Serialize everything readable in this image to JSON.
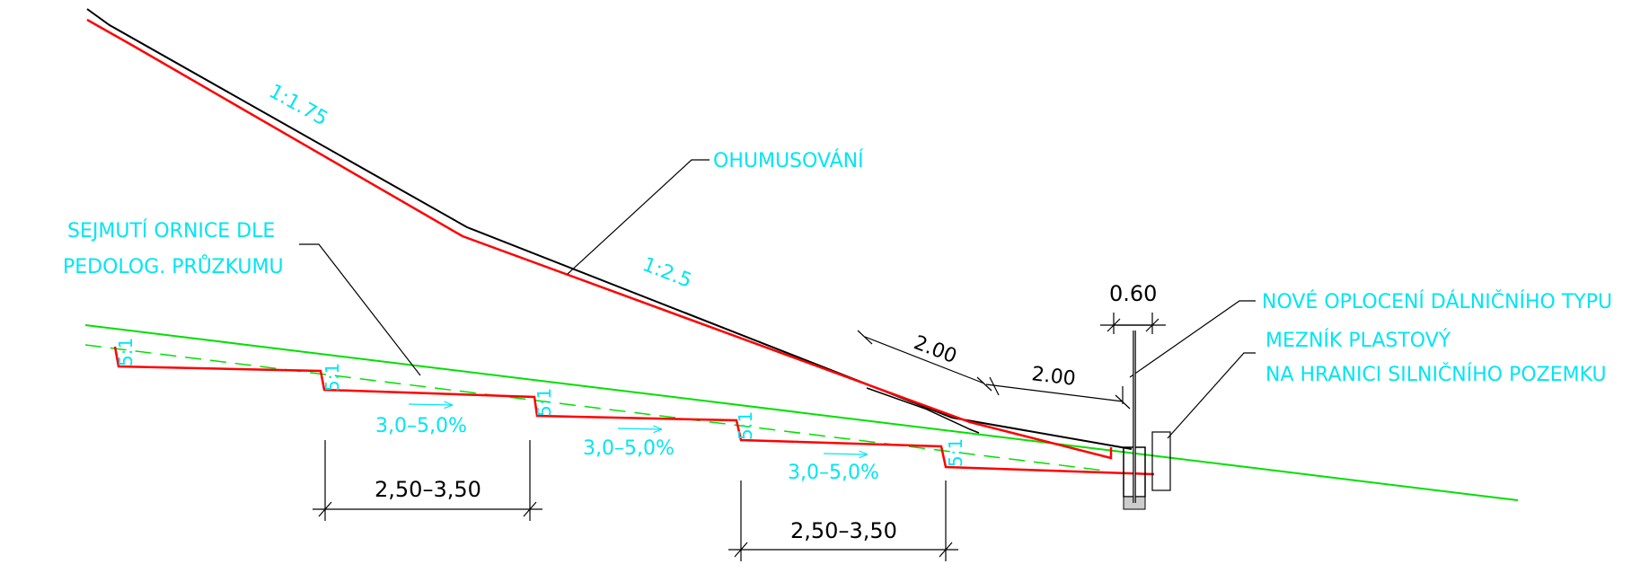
{
  "colors": {
    "background": "#ffffff",
    "existing_terrain": "#00e000",
    "design_line": "#ff0000",
    "humus_line": "#000000",
    "annotation_text": "#00e5f2",
    "dimension": "#000000"
  },
  "labels": {
    "slope_upper": "1:1.75",
    "slope_lower": "1:2.5",
    "ohumusovani": "OHUMUSOVÁNÍ",
    "sejmuti_line1": "SEJMUTÍ ORNICE DLE",
    "sejmuti_line2": "PEDOLOG. PRŮZKUMU",
    "fence": "NOVÉ OPLOCENÍ DÁLNIČNÍHO TYPU",
    "meznik_line1": "MEZNÍK PLASTOVÝ",
    "meznik_line2": "NA HRANICI SILNIČNÍHO POZEMKU",
    "step_slope": "5:1",
    "bench_grade_1": "3,0–5,0%",
    "bench_grade_2": "3,0–5,0%",
    "bench_grade_3": "3,0–5,0%"
  },
  "dimensions": {
    "bench_width_1": "2,50–3,50",
    "bench_width_2": "2,50–3,50",
    "offset_1": "2.00",
    "offset_2": "2.00",
    "fence_width": "0.60"
  }
}
